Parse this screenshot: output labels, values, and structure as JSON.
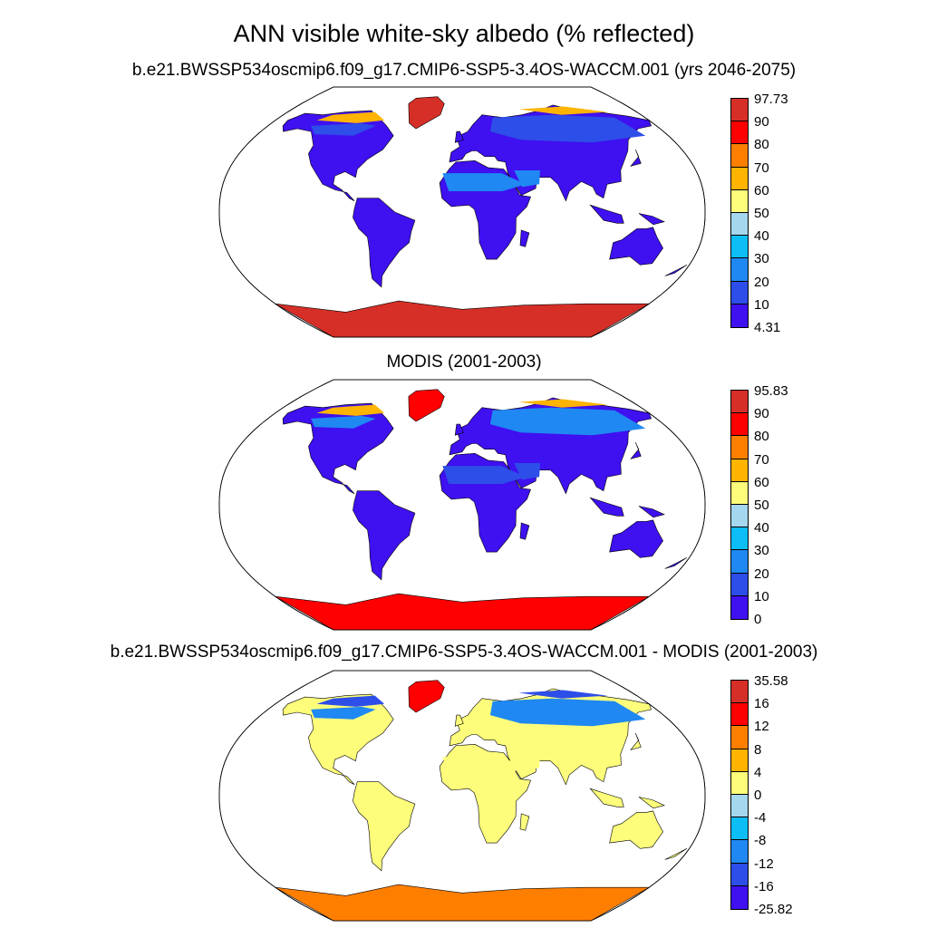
{
  "title": "ANN visible white-sky albedo (% reflected)",
  "panels": [
    {
      "title": "b.e21.BWSSP534oscmip6.f09_g17.CMIP6-SSP5-3.4OS-WACCM.001 (yrs 2046-2075)",
      "colorbar": {
        "labels": [
          "97.73",
          "90",
          "80",
          "70",
          "60",
          "50",
          "40",
          "30",
          "20",
          "10",
          "4.31"
        ],
        "colors": [
          "#d62f27",
          "#fe0000",
          "#fe7f00",
          "#feb400",
          "#fdfd7b",
          "#a5d7ef",
          "#0cbef5",
          "#1f88f2",
          "#2d4ee8",
          "#3f10f0"
        ]
      }
    },
    {
      "title": "MODIS (2001-2003)",
      "colorbar": {
        "labels": [
          "95.83",
          "90",
          "80",
          "70",
          "60",
          "50",
          "40",
          "30",
          "20",
          "10",
          "0"
        ],
        "colors": [
          "#d62f27",
          "#fe0000",
          "#fe7f00",
          "#feb400",
          "#fdfd7b",
          "#a5d7ef",
          "#0cbef5",
          "#1f88f2",
          "#2d4ee8",
          "#3f10f0"
        ]
      }
    },
    {
      "title": "b.e21.BWSSP534oscmip6.f09_g17.CMIP6-SSP5-3.4OS-WACCM.001 - MODIS (2001-2003)",
      "colorbar": {
        "labels": [
          "35.58",
          "16",
          "12",
          "8",
          "4",
          "0",
          "-4",
          "-8",
          "-12",
          "-16",
          "-25.82"
        ],
        "colors": [
          "#d62f27",
          "#fe0000",
          "#fe7f00",
          "#feb400",
          "#fdfd7b",
          "#a5d7ef",
          "#0cbef5",
          "#1f88f2",
          "#2d4ee8",
          "#3f10f0"
        ]
      }
    }
  ]
}
